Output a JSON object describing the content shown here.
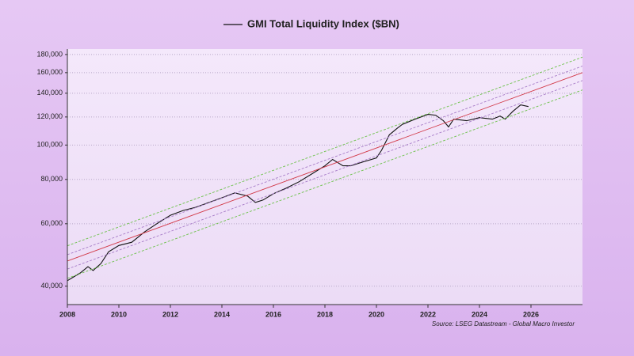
{
  "chart_data": {
    "type": "line",
    "source": "Source: LSEG Datastream - Global Macro Investor",
    "xlim": [
      2008,
      2028
    ],
    "xticks": [
      2008,
      2010,
      2012,
      2014,
      2016,
      2018,
      2020,
      2022,
      2024,
      2026
    ],
    "ylim": [
      35500,
      186500
    ],
    "log_y": true,
    "grid": true,
    "yticks": [
      {
        "value": 40000,
        "label": "40,000"
      },
      {
        "value": 60000,
        "label": "60,000"
      },
      {
        "value": 80000,
        "label": "80,000"
      },
      {
        "value": 100000,
        "label": "100,000"
      },
      {
        "value": 120000,
        "label": "120,000"
      },
      {
        "value": 140000,
        "label": "140,000"
      },
      {
        "value": 160000,
        "label": "160,000"
      },
      {
        "value": 180000,
        "label": "180,000"
      }
    ],
    "series": [
      {
        "name": "GMI Total Liquidity Index ($BN)",
        "color": "#111111",
        "x": [
          2008.0,
          2008.5,
          2008.8,
          2009.0,
          2009.3,
          2009.6,
          2010.0,
          2010.5,
          2011.0,
          2011.5,
          2012.0,
          2012.5,
          2013.0,
          2013.5,
          2014.0,
          2014.5,
          2015.0,
          2015.3,
          2015.6,
          2016.0,
          2016.5,
          2017.0,
          2017.5,
          2018.0,
          2018.3,
          2018.7,
          2019.0,
          2019.5,
          2020.0,
          2020.2,
          2020.5,
          2020.8,
          2021.0,
          2021.5,
          2022.0,
          2022.3,
          2022.6,
          2022.8,
          2023.0,
          2023.5,
          2024.0,
          2024.5,
          2024.8,
          2025.0,
          2025.3,
          2025.6,
          2025.9
        ],
        "values": [
          41450,
          43600,
          45400,
          44300,
          46300,
          50000,
          52100,
          53200,
          56900,
          60200,
          63400,
          65400,
          66800,
          68900,
          71000,
          73300,
          71800,
          68900,
          70000,
          72900,
          75600,
          78800,
          83000,
          87400,
          91100,
          87400,
          87400,
          89700,
          92000,
          96700,
          106900,
          111400,
          114300,
          118300,
          122000,
          121400,
          117100,
          112500,
          118300,
          117100,
          119500,
          118300,
          120700,
          118300,
          124500,
          129800,
          128400
        ]
      },
      {
        "color": "#d23a48",
        "x": [
          2008,
          2028
        ],
        "values": [
          47100,
          160000
        ]
      },
      {
        "color": "#a77cc8",
        "dashed": true,
        "x": [
          2008,
          2028
        ],
        "values": [
          49100,
          167000
        ]
      },
      {
        "color": "#a77cc8",
        "dashed": true,
        "x": [
          2008,
          2028
        ],
        "values": [
          44700,
          152000
        ]
      },
      {
        "color": "#6cc24a",
        "dashed": true,
        "x": [
          2008,
          2028
        ],
        "values": [
          52000,
          177000
        ]
      },
      {
        "color": "#6cc24a",
        "dashed": true,
        "x": [
          2008,
          2028
        ],
        "values": [
          42100,
          143000
        ]
      }
    ]
  }
}
